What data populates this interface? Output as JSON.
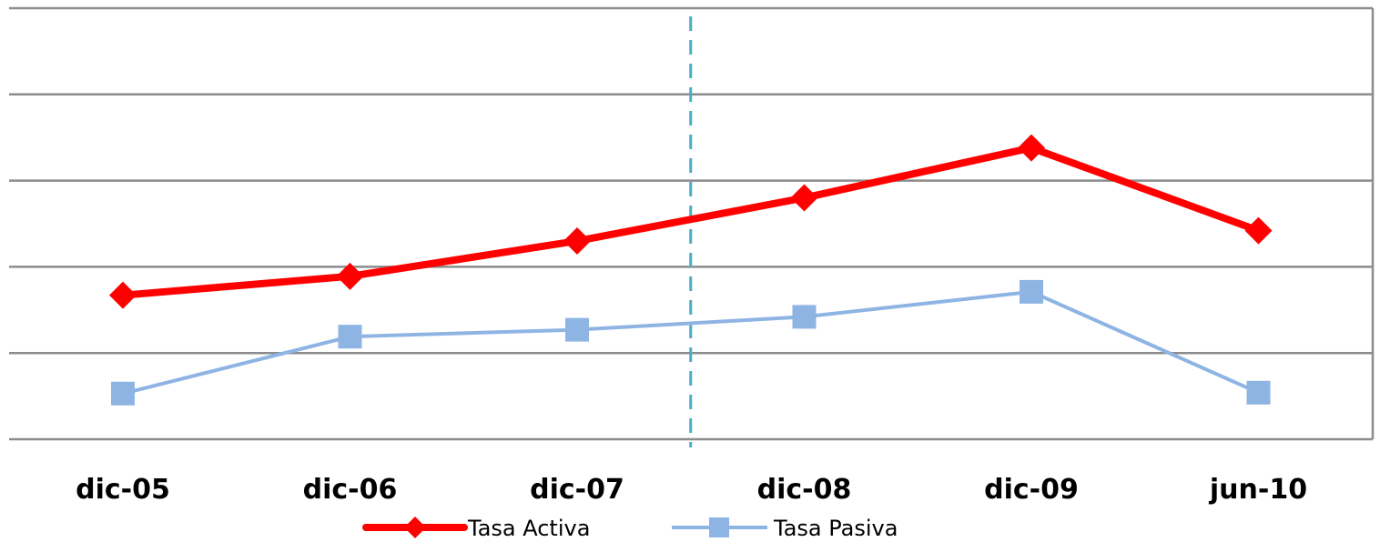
{
  "chart_data": {
    "type": "line",
    "categories": [
      "dic-05",
      "dic-06",
      "dic-07",
      "dic-08",
      "dic-09",
      "jun-10"
    ],
    "ylim": [
      0,
      5
    ],
    "y_tick_labels_shown": false,
    "grid": "horizontal",
    "series": [
      {
        "name": "Tasa Activa",
        "values": [
          1.67,
          1.89,
          2.3,
          2.8,
          3.38,
          2.42
        ],
        "color": "#ff0000",
        "marker": "diamond"
      },
      {
        "name": "Tasa Pasiva",
        "values": [
          0.53,
          1.19,
          1.27,
          1.42,
          1.71,
          0.54
        ],
        "color": "#8eb4e3",
        "marker": "square"
      }
    ],
    "annotations": [
      {
        "type": "vertical-dashed-line",
        "between": [
          "dic-07",
          "dic-08"
        ],
        "color": "#4bacc6"
      }
    ],
    "legend": {
      "placement": "bottom"
    }
  }
}
